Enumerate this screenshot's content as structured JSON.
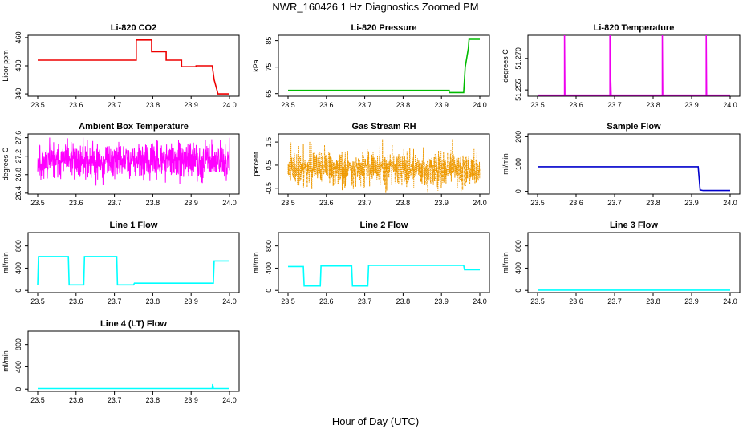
{
  "figure": {
    "title": "NWR_160426  1 Hz Diagnostics Zoomed PM",
    "xlabel": "Hour of Day (UTC)"
  },
  "chart_data": [
    {
      "type": "line",
      "title": "Li-820 CO2",
      "ylabel": "Licor ppm",
      "color": "#ee0000",
      "xlim": [
        23.5,
        24.0
      ],
      "xticks": [
        "23.5",
        "23.6",
        "23.7",
        "23.8",
        "23.9",
        "24.0"
      ],
      "ylim": [
        335,
        465
      ],
      "yticks": [
        "340",
        "400",
        "460"
      ],
      "series": [
        {
          "x": [
            23.5,
            23.757,
            23.757,
            23.797,
            23.797,
            23.835,
            23.835,
            23.875,
            23.875,
            23.913,
            23.913,
            23.955,
            23.96,
            23.97,
            24.0
          ],
          "y": [
            412,
            412,
            455,
            455,
            430,
            430,
            412,
            412,
            398,
            398,
            400,
            400,
            370,
            340,
            340
          ]
        }
      ]
    },
    {
      "type": "line",
      "title": "Li-820 Pressure",
      "ylabel": "kPa",
      "color": "#00bb00",
      "xlim": [
        23.5,
        24.0
      ],
      "xticks": [
        "23.5",
        "23.6",
        "23.7",
        "23.8",
        "23.9",
        "24.0"
      ],
      "ylim": [
        64,
        87
      ],
      "yticks": [
        "65",
        "75",
        "85"
      ],
      "series": [
        {
          "x": [
            23.5,
            23.92,
            23.92,
            23.958,
            23.962,
            23.97,
            23.972,
            24.0
          ],
          "y": [
            66.2,
            66.2,
            65.4,
            65.4,
            75,
            82,
            85.5,
            85.5
          ]
        }
      ]
    },
    {
      "type": "line",
      "title": "Li-820 Temperature",
      "ylabel": "degrees C",
      "color": "#ee00ee",
      "xlim": [
        23.5,
        24.0
      ],
      "xticks": [
        "23.5",
        "23.6",
        "23.7",
        "23.8",
        "23.9",
        "24.0"
      ],
      "ylim": [
        51.252,
        51.281
      ],
      "yticks": [
        "51.255",
        "51.270"
      ],
      "series": [
        {
          "x": [
            23.5,
            23.57,
            23.57,
            23.571,
            23.688,
            23.688,
            23.689,
            23.69,
            23.69,
            23.691,
            23.824,
            23.824,
            23.825,
            23.938,
            23.938,
            23.939,
            24.0
          ],
          "y": [
            51.2525,
            51.2525,
            51.281,
            51.2525,
            51.2525,
            51.281,
            51.2525,
            51.2525,
            51.2595,
            51.2525,
            51.2525,
            51.281,
            51.2525,
            51.2525,
            51.281,
            51.2525,
            51.2525
          ]
        }
      ]
    },
    {
      "type": "line",
      "title": "Ambient Box Temperature",
      "ylabel": "degrees C",
      "color": "#ff00ff",
      "xlim": [
        23.5,
        24.0
      ],
      "xticks": [
        "23.5",
        "23.6",
        "23.7",
        "23.8",
        "23.9",
        "24.0"
      ],
      "ylim": [
        26.38,
        27.68
      ],
      "yticks": [
        "26.4",
        "26.8",
        "27.2",
        "27.6"
      ],
      "noise": {
        "n": 900,
        "center": 27.1,
        "spread": 0.28,
        "min": 26.4,
        "max": 27.65,
        "seed": 11
      }
    },
    {
      "type": "line",
      "title": "Gas Stream RH",
      "ylabel": "percent",
      "color": "#ee9900",
      "xlim": [
        23.5,
        24.0
      ],
      "xticks": [
        "23.5",
        "23.6",
        "23.7",
        "23.8",
        "23.9",
        "24.0"
      ],
      "ylim": [
        -0.75,
        1.85
      ],
      "yticks": [
        "-0.5",
        "0.5",
        "1.5"
      ],
      "noise": {
        "n": 1000,
        "center": 0.35,
        "spread": 0.55,
        "min": -0.7,
        "max": 1.65,
        "seed": 23
      }
    },
    {
      "type": "line",
      "title": "Sample Flow",
      "ylabel": "ml/min",
      "color": "#0000cc",
      "xlim": [
        23.5,
        24.0
      ],
      "xticks": [
        "23.5",
        "23.6",
        "23.7",
        "23.8",
        "23.9",
        "24.0"
      ],
      "ylim": [
        -10,
        210
      ],
      "yticks": [
        "0",
        "100",
        "200"
      ],
      "series": [
        {
          "x": [
            23.5,
            23.917,
            23.922,
            23.93,
            24.0
          ],
          "y": [
            90,
            90,
            5,
            3,
            3
          ]
        }
      ]
    },
    {
      "type": "line",
      "title": "Line 1 Flow",
      "ylabel": "ml/min",
      "color": "#00ffff",
      "xlim": [
        23.5,
        24.0
      ],
      "xticks": [
        "23.5",
        "23.6",
        "23.7",
        "23.8",
        "23.9",
        "24.0"
      ],
      "ylim": [
        -40,
        1040
      ],
      "yticks": [
        "0",
        "400",
        "800"
      ],
      "series": [
        {
          "x": [
            23.5,
            23.502,
            23.58,
            23.582,
            23.62,
            23.622,
            23.706,
            23.708,
            23.75,
            23.752,
            23.958,
            23.96,
            24.0
          ],
          "y": [
            100,
            610,
            610,
            100,
            100,
            610,
            610,
            100,
            100,
            130,
            130,
            530,
            530
          ]
        }
      ]
    },
    {
      "type": "line",
      "title": "Line 2 Flow",
      "ylabel": "ml/min",
      "color": "#00ffff",
      "xlim": [
        23.5,
        24.0
      ],
      "xticks": [
        "23.5",
        "23.6",
        "23.7",
        "23.8",
        "23.9",
        "24.0"
      ],
      "ylim": [
        -40,
        1040
      ],
      "yticks": [
        "0",
        "400",
        "800"
      ],
      "series": [
        {
          "x": [
            23.5,
            23.54,
            23.542,
            23.584,
            23.586,
            23.666,
            23.668,
            23.708,
            23.71,
            23.958,
            23.96,
            24.0
          ],
          "y": [
            430,
            430,
            80,
            80,
            440,
            440,
            80,
            80,
            450,
            450,
            370,
            370
          ]
        }
      ]
    },
    {
      "type": "line",
      "title": "Line 3 Flow",
      "ylabel": "ml/min",
      "color": "#00ffff",
      "xlim": [
        23.5,
        24.0
      ],
      "xticks": [
        "23.5",
        "23.6",
        "23.7",
        "23.8",
        "23.9",
        "24.0"
      ],
      "ylim": [
        -40,
        1040
      ],
      "yticks": [
        "0",
        "400",
        "800"
      ],
      "series": [
        {
          "x": [
            23.5,
            24.0
          ],
          "y": [
            5,
            5
          ]
        }
      ]
    },
    {
      "type": "line",
      "title": "Line 4 (LT) Flow",
      "ylabel": "ml/min",
      "color": "#00ffff",
      "xlim": [
        23.5,
        24.0
      ],
      "xticks": [
        "23.5",
        "23.6",
        "23.7",
        "23.8",
        "23.9",
        "24.0"
      ],
      "ylim": [
        -40,
        1040
      ],
      "yticks": [
        "0",
        "400",
        "800"
      ],
      "series": [
        {
          "x": [
            23.5,
            23.955,
            23.956,
            23.958,
            23.96,
            24.0
          ],
          "y": [
            10,
            10,
            90,
            10,
            10,
            10
          ]
        }
      ]
    }
  ]
}
